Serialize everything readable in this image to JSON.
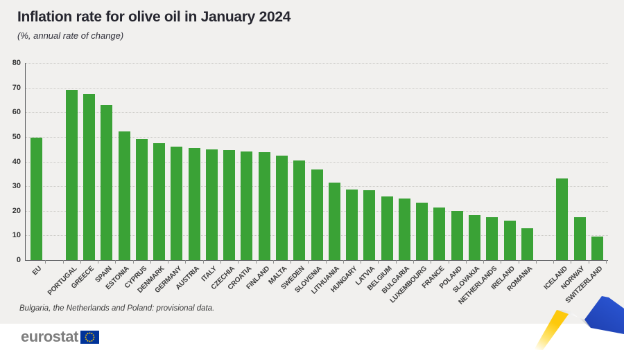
{
  "page": {
    "title": "Inflation rate for olive oil in January 2024",
    "subtitle": "(%, annual rate of change)",
    "footnote": "Bulgaria, the Netherlands and Poland: provisional data.",
    "logo_text": "eurostat"
  },
  "colors": {
    "panel_background": "#f1f0ee",
    "footer_background": "#ffffff",
    "bar_green": "#3aa236",
    "axis": "#5a5b5e",
    "gridline": "#c9c8c4",
    "title_text": "#26262f",
    "label_text": "#3a3a3a",
    "logo_gray": "#7e7e7e",
    "eu_flag_blue": "#003399",
    "eu_star_yellow": "#ffcc00",
    "ribbon_yellow": "#ffcf00",
    "ribbon_blue": "#2b50c8"
  },
  "chart_data": {
    "type": "bar",
    "title": "Inflation rate for olive oil in January 2024",
    "subtitle": "(%, annual rate of change)",
    "xlabel": "",
    "ylabel": "",
    "ylim": [
      0,
      80
    ],
    "yticks": [
      0,
      10,
      20,
      30,
      40,
      50,
      60,
      70,
      80
    ],
    "grid": "horizontal-dotted",
    "legend": "none",
    "bar_color": "#3aa236",
    "categories": [
      "EU",
      "PORTUGAL",
      "GREECE",
      "SPAIN",
      "ESTONIA",
      "CYPRUS",
      "DENMARK",
      "GERMANY",
      "AUSTRIA",
      "ITALY",
      "CZECHIA",
      "CROATIA",
      "FINLAND",
      "MALTA",
      "SWEDEN",
      "SLOVENIA",
      "LITHUANIA",
      "HUNGARY",
      "LATVIA",
      "BELGIUM",
      "BULGARIA",
      "LUXEMBOURG",
      "FRANCE",
      "POLAND",
      "SLOVAKIA",
      "NETHERLANDS",
      "IRELAND",
      "ROMANIA",
      "ICELAND",
      "NORWAY",
      "SWITZERLAND"
    ],
    "values": [
      49.8,
      69.1,
      67.4,
      62.9,
      52.2,
      49.2,
      47.4,
      46.0,
      45.4,
      44.8,
      44.7,
      44.0,
      43.8,
      42.5,
      40.4,
      36.9,
      31.5,
      28.7,
      28.3,
      25.8,
      25.0,
      23.2,
      21.2,
      19.8,
      18.2,
      17.5,
      15.9,
      12.8,
      33.0,
      17.5,
      9.6
    ],
    "gap_after": [
      "EU",
      "ROMANIA"
    ]
  }
}
